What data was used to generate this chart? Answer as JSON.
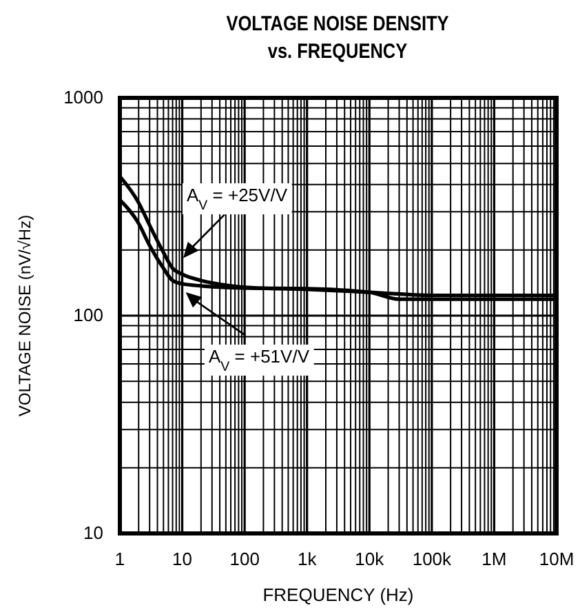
{
  "chart_data": {
    "type": "line",
    "title": "VOLTAGE NOISE DENSITY\nvs. FREQUENCY",
    "xlabel": "FREQUENCY (Hz)",
    "ylabel": "VOLTAGE NOISE (nV/√Hz)",
    "log": "xy",
    "grid": true,
    "marker": "none",
    "line_style": "solid",
    "xlim": [
      1,
      10000000
    ],
    "xticks": [
      1,
      10,
      100,
      {
        "value": 1000,
        "label": "1k"
      },
      {
        "value": 10000,
        "label": "10k"
      },
      {
        "value": 100000,
        "label": "100k"
      },
      {
        "value": 1000000,
        "label": "1M"
      },
      {
        "value": 10000000,
        "label": "10M"
      }
    ],
    "ylim": [
      10,
      1000
    ],
    "yticks": [
      10,
      100,
      1000
    ],
    "series": [
      {
        "name": "A$_{V}$ = +25V/V",
        "color": "#000000",
        "x": [
          1,
          2,
          3,
          5,
          7,
          10,
          20,
          50,
          100,
          1000,
          10000,
          100000,
          1000000,
          10000000
        ],
        "values": [
          436,
          330,
          260,
          195,
          165,
          155,
          145,
          138,
          135,
          132,
          128,
          124,
          124,
          124
        ]
      },
      {
        "name": "A$_{V}$ = +51V/V",
        "color": "#000000",
        "x": [
          1,
          2,
          3,
          5,
          7,
          10,
          20,
          100,
          1000,
          10000,
          30000,
          100000,
          10000000
        ],
        "values": [
          340,
          265,
          210,
          165,
          145,
          140,
          137,
          134,
          133,
          128,
          119,
          119,
          119
        ]
      }
    ]
  }
}
